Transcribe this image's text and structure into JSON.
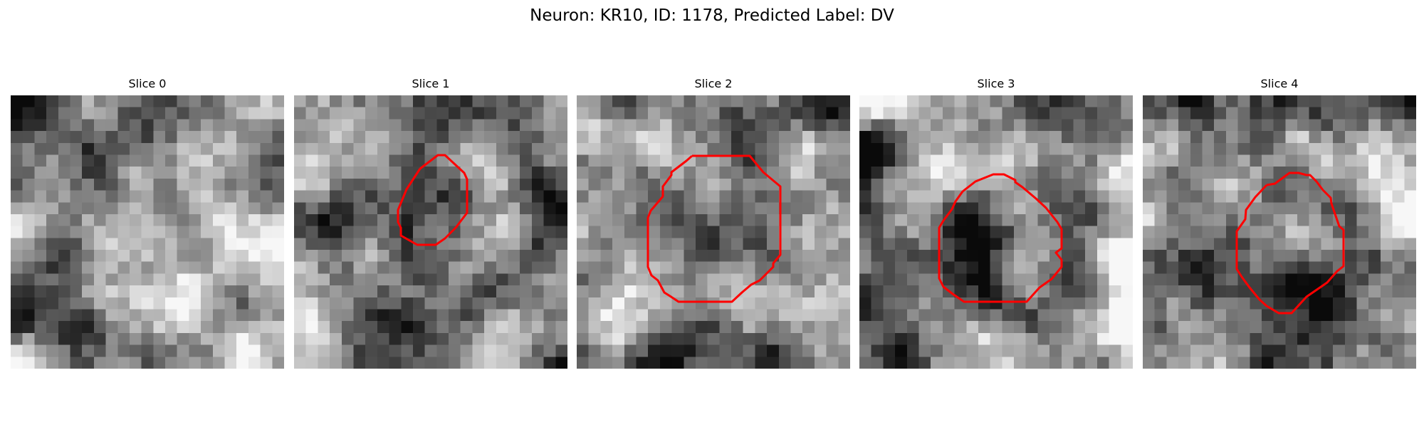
{
  "title": "Neuron: KR10, ID: 1178, Predicted Label: DV",
  "colors": {
    "roi_outline": "#ff0000",
    "background": "#ffffff"
  },
  "slices": [
    {
      "label": "Slice 0",
      "has_roi": false
    },
    {
      "label": "Slice 1",
      "has_roi": true
    },
    {
      "label": "Slice 2",
      "has_roi": true
    },
    {
      "label": "Slice 3",
      "has_roi": true
    },
    {
      "label": "Slice 4",
      "has_roi": true
    }
  ]
}
